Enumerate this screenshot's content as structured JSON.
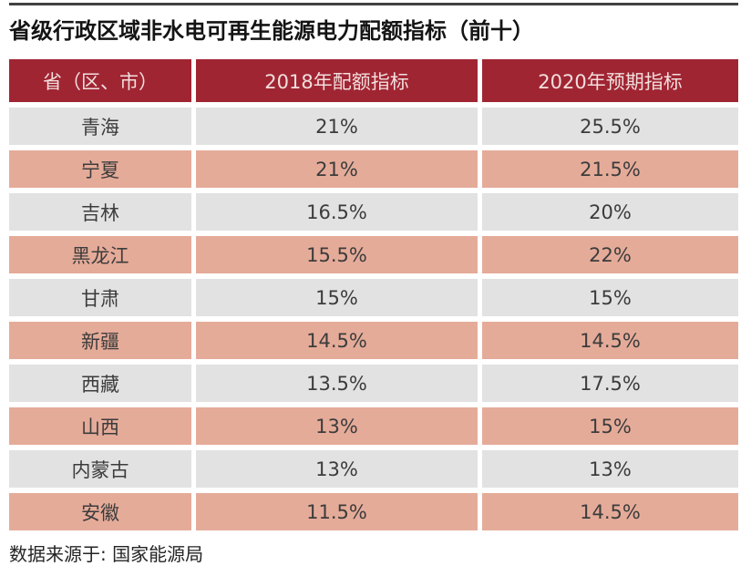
{
  "title": "省级行政区域非水电可再生能源电力配额指标（前十）",
  "source_note": "数据来源于: 国家能源局",
  "colors": {
    "header_bg": "#A02533",
    "header_fg": "#F2DFDD",
    "row_gray": "#E2E2E3",
    "row_salmon": "#E5AB99",
    "top_line": "#414141"
  },
  "chart_data": {
    "type": "table",
    "title": "省级行政区域非水电可再生能源电力配额指标（前十）",
    "columns": [
      "省（区、市）",
      "2018年配额指标",
      "2020年预期指标"
    ],
    "rows": [
      [
        "青海",
        "21%",
        "25.5%"
      ],
      [
        "宁夏",
        "21%",
        "21.5%"
      ],
      [
        "吉林",
        "16.5%",
        "20%"
      ],
      [
        "黑龙江",
        "15.5%",
        "22%"
      ],
      [
        "甘肃",
        "15%",
        "15%"
      ],
      [
        "新疆",
        "14.5%",
        "14.5%"
      ],
      [
        "西藏",
        "13.5%",
        "17.5%"
      ],
      [
        "山西",
        "13%",
        "15%"
      ],
      [
        "内蒙古",
        "13%",
        "13%"
      ],
      [
        "安徽",
        "11.5%",
        "14.5%"
      ]
    ],
    "source": "数据来源于: 国家能源局",
    "legend_position": "none",
    "grid": false
  }
}
